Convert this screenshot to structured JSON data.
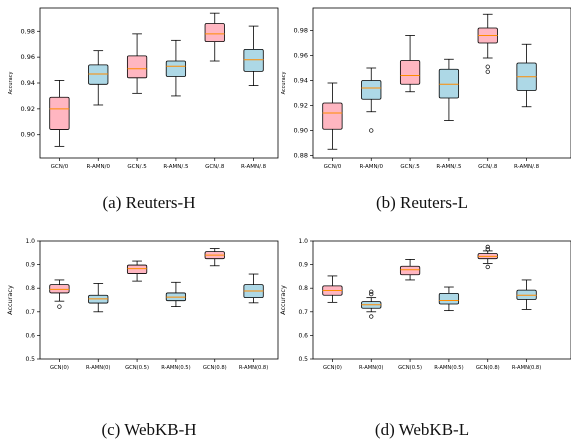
{
  "colors": {
    "pink": "#ffb6c1",
    "blue": "#add8e6",
    "median": "#ff8c00",
    "edge": "#000000"
  },
  "chart_data": [
    {
      "type": "box",
      "caption": "(a) Reuters-H",
      "ylabel": "Accuracy",
      "ylim": [
        0.882,
        0.998
      ],
      "yticks": [
        "0.90",
        "0.92",
        "0.94",
        "0.96",
        "0.98"
      ],
      "categories": [
        "GCN/0",
        "R-AMN/0",
        "GCN/.5",
        "R-AMN/.5",
        "GCN/.8",
        "R-AMN/.8"
      ],
      "box_colors": [
        "pink",
        "blue",
        "pink",
        "blue",
        "pink",
        "blue"
      ],
      "boxes": [
        {
          "whislo": 0.891,
          "q1": 0.904,
          "med": 0.92,
          "q3": 0.929,
          "whishi": 0.942,
          "fliers": []
        },
        {
          "whislo": 0.923,
          "q1": 0.939,
          "med": 0.947,
          "q3": 0.954,
          "whishi": 0.965,
          "fliers": []
        },
        {
          "whislo": 0.932,
          "q1": 0.944,
          "med": 0.951,
          "q3": 0.961,
          "whishi": 0.978,
          "fliers": []
        },
        {
          "whislo": 0.93,
          "q1": 0.945,
          "med": 0.953,
          "q3": 0.957,
          "whishi": 0.973,
          "fliers": []
        },
        {
          "whislo": 0.957,
          "q1": 0.972,
          "med": 0.978,
          "q3": 0.986,
          "whishi": 0.994,
          "fliers": []
        },
        {
          "whislo": 0.938,
          "q1": 0.949,
          "med": 0.958,
          "q3": 0.966,
          "whishi": 0.984,
          "fliers": []
        }
      ]
    },
    {
      "type": "box",
      "caption": "(b) Reuters-L",
      "ylabel": "Accuracy",
      "ylim": [
        0.878,
        0.998
      ],
      "yticks": [
        "0.88",
        "0.90",
        "0.92",
        "0.94",
        "0.96",
        "0.98"
      ],
      "categories": [
        "GCN/0",
        "R-AMN/0",
        "GCN/.5",
        "R-AMN/.5",
        "GCN/.8",
        "R-AMN/.8"
      ],
      "box_colors": [
        "pink",
        "blue",
        "pink",
        "blue",
        "pink",
        "blue"
      ],
      "boxes": [
        {
          "whislo": 0.885,
          "q1": 0.901,
          "med": 0.914,
          "q3": 0.922,
          "whishi": 0.938,
          "fliers": []
        },
        {
          "whislo": 0.915,
          "q1": 0.925,
          "med": 0.934,
          "q3": 0.94,
          "whishi": 0.95,
          "fliers": [
            0.9
          ]
        },
        {
          "whislo": 0.931,
          "q1": 0.937,
          "med": 0.944,
          "q3": 0.956,
          "whishi": 0.976,
          "fliers": []
        },
        {
          "whislo": 0.908,
          "q1": 0.926,
          "med": 0.937,
          "q3": 0.949,
          "whishi": 0.957,
          "fliers": []
        },
        {
          "whislo": 0.958,
          "q1": 0.97,
          "med": 0.976,
          "q3": 0.982,
          "whishi": 0.993,
          "fliers": [
            0.951,
            0.947
          ]
        },
        {
          "whislo": 0.919,
          "q1": 0.932,
          "med": 0.943,
          "q3": 0.954,
          "whishi": 0.969,
          "fliers": []
        }
      ]
    },
    {
      "type": "box",
      "caption": "(c) WebKB-H",
      "ylabel": "Accuracy",
      "ylim": [
        0.5,
        1.0
      ],
      "yticks": [
        "0.5",
        "0.6",
        "0.7",
        "0.8",
        "0.9",
        "1.0"
      ],
      "categories": [
        "GCN(0)",
        "R-AMN(0)",
        "GCN(0.5)",
        "R-AMN(0.5)",
        "GCN(0.8)",
        "R-AMN(0.8)"
      ],
      "box_colors": [
        "pink",
        "blue",
        "pink",
        "blue",
        "pink",
        "blue"
      ],
      "boxes": [
        {
          "whislo": 0.745,
          "q1": 0.78,
          "med": 0.795,
          "q3": 0.815,
          "whishi": 0.835,
          "fliers": [
            0.722
          ]
        },
        {
          "whislo": 0.7,
          "q1": 0.737,
          "med": 0.755,
          "q3": 0.77,
          "whishi": 0.82,
          "fliers": []
        },
        {
          "whislo": 0.83,
          "q1": 0.862,
          "med": 0.883,
          "q3": 0.898,
          "whishi": 0.915,
          "fliers": []
        },
        {
          "whislo": 0.722,
          "q1": 0.747,
          "med": 0.762,
          "q3": 0.78,
          "whishi": 0.825,
          "fliers": []
        },
        {
          "whislo": 0.895,
          "q1": 0.925,
          "med": 0.94,
          "q3": 0.955,
          "whishi": 0.968,
          "fliers": []
        },
        {
          "whislo": 0.738,
          "q1": 0.76,
          "med": 0.788,
          "q3": 0.815,
          "whishi": 0.86,
          "fliers": []
        }
      ]
    },
    {
      "type": "box",
      "caption": "(d) WebKB-L",
      "ylabel": "Accuracy",
      "ylim": [
        0.5,
        1.0
      ],
      "yticks": [
        "0.5",
        "0.6",
        "0.7",
        "0.8",
        "0.9",
        "1.0"
      ],
      "categories": [
        "GCN(0)",
        "R-AMN(0)",
        "GCN(0.5)",
        "R-AMN(0.5)",
        "GCN(0.8)",
        "R-AMN(0.8)"
      ],
      "box_colors": [
        "pink",
        "blue",
        "pink",
        "blue",
        "pink",
        "blue"
      ],
      "boxes": [
        {
          "whislo": 0.74,
          "q1": 0.77,
          "med": 0.79,
          "q3": 0.81,
          "whishi": 0.852,
          "fliers": []
        },
        {
          "whislo": 0.7,
          "q1": 0.715,
          "med": 0.73,
          "q3": 0.743,
          "whishi": 0.76,
          "fliers": [
            0.68,
            0.775,
            0.785
          ]
        },
        {
          "whislo": 0.835,
          "q1": 0.857,
          "med": 0.878,
          "q3": 0.893,
          "whishi": 0.922,
          "fliers": []
        },
        {
          "whislo": 0.705,
          "q1": 0.733,
          "med": 0.748,
          "q3": 0.778,
          "whishi": 0.805,
          "fliers": []
        },
        {
          "whislo": 0.905,
          "q1": 0.925,
          "med": 0.935,
          "q3": 0.947,
          "whishi": 0.958,
          "fliers": [
            0.89,
            0.965,
            0.975
          ]
        },
        {
          "whislo": 0.71,
          "q1": 0.752,
          "med": 0.77,
          "q3": 0.792,
          "whishi": 0.835,
          "fliers": []
        }
      ]
    }
  ]
}
